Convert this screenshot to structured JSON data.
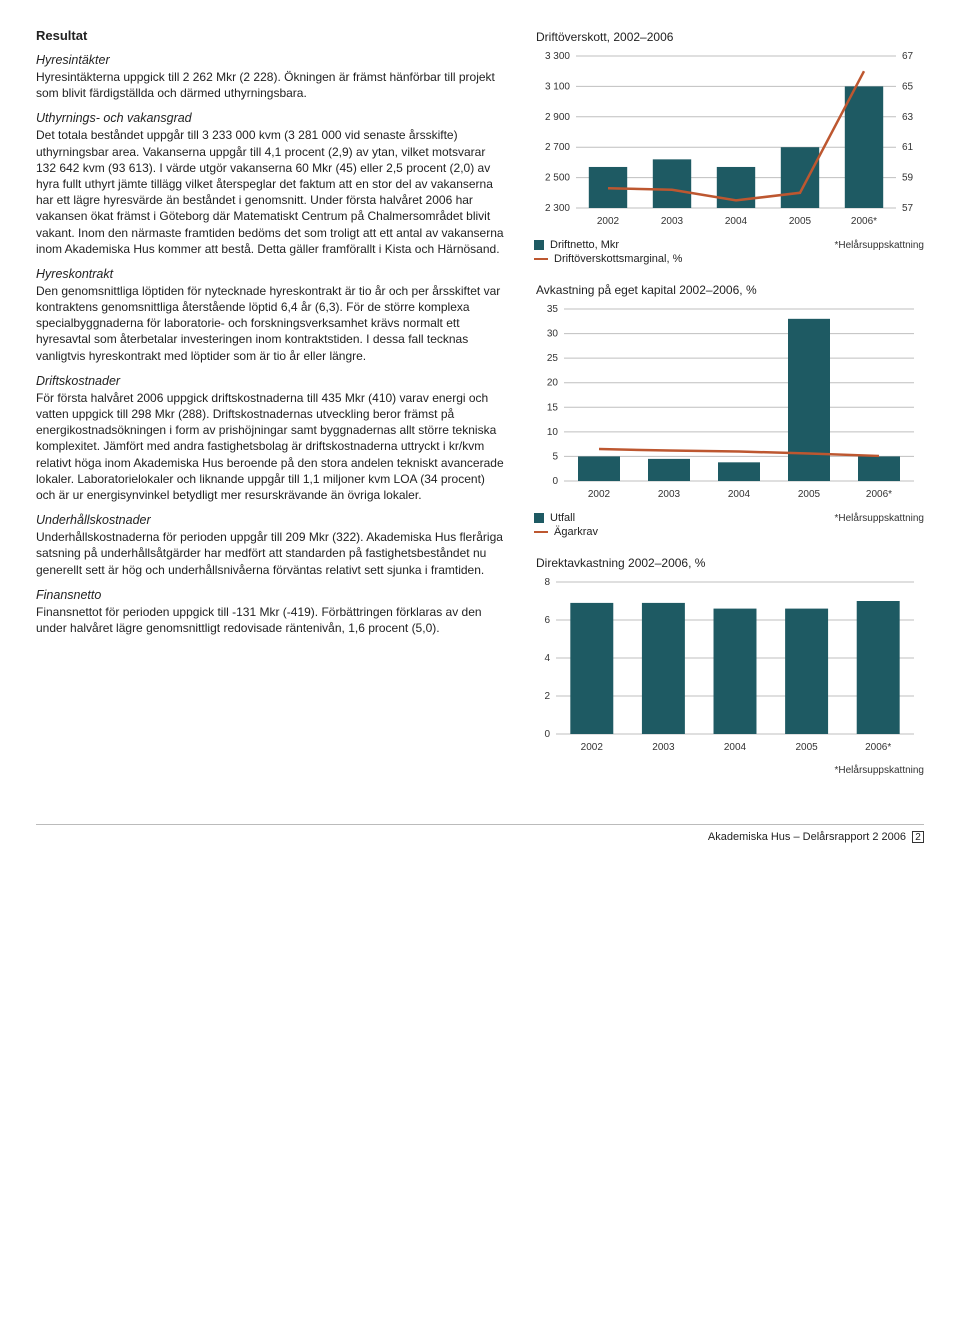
{
  "left": {
    "resultat_title": "Resultat",
    "hyresintakter_title": "Hyresintäkter",
    "hyresintakter_p": "Hyresintäkterna uppgick till 2 262 Mkr (2 228). Ökningen är främst hänförbar till projekt som blivit färdigställda och därmed uthyrningsbara.",
    "uthyr_title": "Uthyrnings- och vakansgrad",
    "uthyr_p": "Det totala beståndet uppgår till 3 233 000 kvm (3 281 000 vid senaste årsskifte) uthyrningsbar area. Vakanserna uppgår till 4,1 procent (2,9) av ytan, vilket motsvarar 132 642 kvm (93 613). I värde utgör vakanserna 60 Mkr (45) eller 2,5 procent (2,0) av hyra fullt uthyrt jämte tillägg vilket återspeglar det faktum att en stor del av vakanserna har ett lägre hyresvärde än beståndet i genomsnitt. Under första halvåret 2006 har vakansen ökat främst i Göteborg där Matematiskt Centrum på Chalmersområdet blivit vakant. Inom den närmaste framtiden bedöms det som troligt att ett antal av vakanserna inom Akademiska Hus kommer att bestå. Detta gäller framförallt i Kista och Härnösand.",
    "hyreskontrakt_title": "Hyreskontrakt",
    "hyreskontrakt_p": "Den genomsnittliga löptiden för nytecknade hyreskontrakt är tio år och per årsskiftet var kontraktens genomsnittliga återstående löptid 6,4 år (6,3). För de större komplexa specialbyggnaderna för laboratorie- och forskningsverksamhet krävs normalt ett hyresavtal som återbetalar investeringen inom kontraktstiden. I dessa fall tecknas vanligtvis hyreskontrakt med löptider som är tio år eller längre.",
    "driftsk_title": "Driftskostnader",
    "driftsk_p": "För första halvåret 2006 uppgick driftskostnaderna till 435 Mkr (410) varav energi och vatten uppgick till 298 Mkr (288). Driftskostnadernas utveckling beror främst på energikostnadsökningen i form av prishöjningar samt byggnadernas allt större tekniska komplexitet. Jämfört med andra fastighetsbolag är driftskostnaderna uttryckt i kr/kvm relativt höga inom Akademiska Hus beroende på den stora andelen tekniskt avancerade lokaler. Laboratorielokaler och liknande uppgår till 1,1 miljoner kvm LOA (34 procent) och är ur energisynvinkel betydligt mer resurskrävande än övriga lokaler.",
    "underh_title": "Underhållskostnader",
    "underh_p": "Underhållskostnaderna för perioden uppgår till 209 Mkr (322). Akademiska Hus fleråriga satsning på underhållsåtgärder har medfört att standarden på fastighetsbeståndet nu generellt sett är hög och underhållsnivåerna förväntas relativt sett sjunka i framtiden.",
    "finans_title": "Finansnetto",
    "finans_p": "Finansnettot för perioden uppgick till -131 Mkr (-419). Förbättringen förklaras av den under halvåret lägre genomsnittligt redovisade räntenivån, 1,6 procent (5,0)."
  },
  "chart1": {
    "title": "Driftöverskott, 2002–2006",
    "type": "bar+line",
    "categories": [
      "2002",
      "2003",
      "2004",
      "2005",
      "2006*"
    ],
    "bars": [
      2570,
      2620,
      2570,
      2700,
      3100
    ],
    "line": [
      58.3,
      58.2,
      57.5,
      58.0,
      66
    ],
    "ylim_left": [
      2300,
      3300
    ],
    "ytick_left": [
      2300,
      2500,
      2700,
      2900,
      3100,
      3300
    ],
    "ylim_right": [
      57,
      67
    ],
    "ytick_right": [
      57,
      59,
      61,
      63,
      65,
      67
    ],
    "bar_color": "#1e5a63",
    "line_color": "#bd5730",
    "grid_color": "#bfbfbf",
    "background_color": "#ffffff",
    "bar_width": 0.6,
    "legend_bar": "Driftnetto, Mkr",
    "legend_line": "Driftöverskottsmarginal, %",
    "note": "*Helårsuppskattning",
    "axis_fontsize": 10
  },
  "chart2": {
    "title": "Avkastning på eget kapital 2002–2006, %",
    "type": "bar+line",
    "categories": [
      "2002",
      "2003",
      "2004",
      "2005",
      "2006*"
    ],
    "bars": [
      5,
      4.5,
      3.8,
      33,
      5
    ],
    "line": [
      6.5,
      6.2,
      6.0,
      5.6,
      5.1
    ],
    "ylim": [
      0,
      35
    ],
    "ytick": [
      0,
      5,
      10,
      15,
      20,
      25,
      30,
      35
    ],
    "bar_color": "#1e5a63",
    "line_color": "#bd5730",
    "grid_color": "#bfbfbf",
    "bar_width": 0.6,
    "legend_bar": "Utfall",
    "legend_line": "Ägarkrav",
    "note": "*Helårsuppskattning",
    "axis_fontsize": 10
  },
  "chart3": {
    "title": "Direktavkastning 2002–2006, %",
    "type": "bar",
    "categories": [
      "2002",
      "2003",
      "2004",
      "2005",
      "2006*"
    ],
    "bars": [
      6.9,
      6.9,
      6.6,
      6.6,
      7.0
    ],
    "ylim": [
      0,
      8
    ],
    "ytick": [
      0,
      2,
      4,
      6,
      8
    ],
    "bar_color": "#1e5a63",
    "grid_color": "#bfbfbf",
    "bar_width": 0.6,
    "note": "*Helårsuppskattning",
    "axis_fontsize": 10
  },
  "footer": {
    "text": "Akademiska Hus – Delårsrapport 2 2006",
    "page": "2"
  }
}
